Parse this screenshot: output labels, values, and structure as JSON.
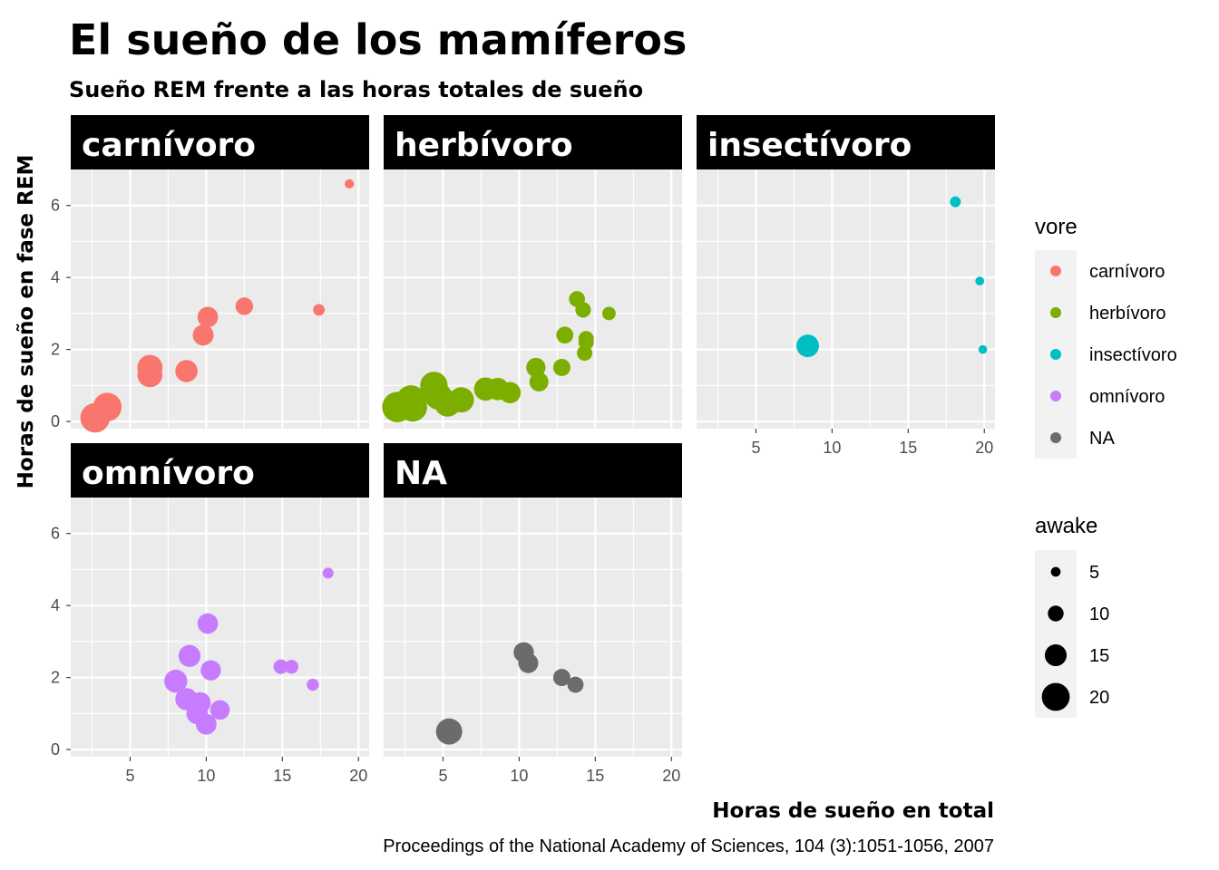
{
  "chart_data": {
    "type": "scatter",
    "title": "El sueño de los mamíferos",
    "subtitle": "Sueño REM frente a las horas totales de sueño",
    "xlabel": "Horas de sueño en total",
    "ylabel": "Horas de sueño en fase REM",
    "caption": "Proceedings of the National Academy of Sciences, 104 (3):1051-1056, 2007",
    "xlim": [
      1.1,
      20.7
    ],
    "ylim": [
      -0.2,
      7.0
    ],
    "x_ticks": [
      5,
      10,
      15,
      20
    ],
    "y_ticks": [
      0,
      2,
      4,
      6
    ],
    "facet_by": "vore",
    "size_by": "awake",
    "grid": true,
    "legend_position": "right",
    "panels": [
      {
        "name": "carnívoro",
        "color": "#F8766D",
        "points": [
          {
            "x": 19.4,
            "y": 6.6,
            "awake": 4.6
          },
          {
            "x": 17.4,
            "y": 3.1,
            "awake": 6.6
          },
          {
            "x": 12.5,
            "y": 3.2,
            "awake": 11.5
          },
          {
            "x": 10.1,
            "y": 2.9,
            "awake": 13.9
          },
          {
            "x": 9.8,
            "y": 2.4,
            "awake": 14.2
          },
          {
            "x": 8.7,
            "y": 1.4,
            "awake": 15.3
          },
          {
            "x": 6.3,
            "y": 1.5,
            "awake": 17.7
          },
          {
            "x": 6.3,
            "y": 1.3,
            "awake": 17.7
          },
          {
            "x": 3.5,
            "y": 0.4,
            "awake": 20.5
          },
          {
            "x": 2.7,
            "y": 0.1,
            "awake": 21.3
          }
        ]
      },
      {
        "name": "herbívoro",
        "color": "#7CAE00",
        "points": [
          {
            "x": 2.0,
            "y": 0.4,
            "awake": 22.0
          },
          {
            "x": 2.9,
            "y": 0.6,
            "awake": 21.1
          },
          {
            "x": 3.0,
            "y": 0.4,
            "awake": 21.0
          },
          {
            "x": 4.4,
            "y": 1.0,
            "awake": 19.6
          },
          {
            "x": 4.7,
            "y": 0.7,
            "awake": 19.3
          },
          {
            "x": 5.3,
            "y": 0.5,
            "awake": 18.7
          },
          {
            "x": 6.2,
            "y": 0.6,
            "awake": 17.8
          },
          {
            "x": 7.8,
            "y": 0.9,
            "awake": 16.2
          },
          {
            "x": 8.6,
            "y": 0.9,
            "awake": 15.4
          },
          {
            "x": 9.4,
            "y": 0.8,
            "awake": 14.6
          },
          {
            "x": 11.1,
            "y": 1.5,
            "awake": 12.9
          },
          {
            "x": 11.3,
            "y": 1.1,
            "awake": 12.7
          },
          {
            "x": 12.8,
            "y": 1.5,
            "awake": 11.2
          },
          {
            "x": 13.0,
            "y": 2.4,
            "awake": 11.0
          },
          {
            "x": 13.8,
            "y": 3.4,
            "awake": 10.2
          },
          {
            "x": 14.2,
            "y": 3.1,
            "awake": 9.8
          },
          {
            "x": 14.4,
            "y": 2.3,
            "awake": 9.6
          },
          {
            "x": 14.4,
            "y": 2.2,
            "awake": 9.6
          },
          {
            "x": 14.3,
            "y": 1.9,
            "awake": 9.7
          },
          {
            "x": 15.9,
            "y": 3.0,
            "awake": 8.1
          }
        ]
      },
      {
        "name": "insectívoro",
        "color": "#00BFC4",
        "points": [
          {
            "x": 8.4,
            "y": 2.1,
            "awake": 15.6
          },
          {
            "x": 18.1,
            "y": 6.1,
            "awake": 5.9
          },
          {
            "x": 19.7,
            "y": 3.9,
            "awake": 4.3
          },
          {
            "x": 19.9,
            "y": 2.0,
            "awake": 4.1
          }
        ]
      },
      {
        "name": "omnívoro",
        "color": "#C77CFF",
        "points": [
          {
            "x": 18.0,
            "y": 4.9,
            "awake": 6.0
          },
          {
            "x": 17.0,
            "y": 1.8,
            "awake": 7.0
          },
          {
            "x": 15.6,
            "y": 2.3,
            "awake": 8.4
          },
          {
            "x": 14.9,
            "y": 2.3,
            "awake": 9.1
          },
          {
            "x": 10.1,
            "y": 3.5,
            "awake": 13.9
          },
          {
            "x": 10.3,
            "y": 2.2,
            "awake": 13.7
          },
          {
            "x": 8.9,
            "y": 2.6,
            "awake": 15.1
          },
          {
            "x": 8.0,
            "y": 1.9,
            "awake": 16.0
          },
          {
            "x": 8.7,
            "y": 1.4,
            "awake": 15.3
          },
          {
            "x": 9.6,
            "y": 1.3,
            "awake": 14.4
          },
          {
            "x": 10.9,
            "y": 1.1,
            "awake": 13.1
          },
          {
            "x": 9.4,
            "y": 1.0,
            "awake": 14.6
          },
          {
            "x": 10.0,
            "y": 0.7,
            "awake": 14.0
          }
        ]
      },
      {
        "name": "NA",
        "color": "#6B6B6B",
        "points": [
          {
            "x": 5.4,
            "y": 0.5,
            "awake": 18.6
          },
          {
            "x": 10.3,
            "y": 2.7,
            "awake": 13.7
          },
          {
            "x": 10.6,
            "y": 2.4,
            "awake": 13.4
          },
          {
            "x": 12.8,
            "y": 2.0,
            "awake": 11.2
          },
          {
            "x": 13.7,
            "y": 1.8,
            "awake": 10.3
          }
        ]
      }
    ],
    "legend_color": {
      "title": "vore",
      "items": [
        {
          "label": "carnívoro",
          "color": "#F8766D"
        },
        {
          "label": "herbívoro",
          "color": "#7CAE00"
        },
        {
          "label": "insectívoro",
          "color": "#00BFC4"
        },
        {
          "label": "omnívoro",
          "color": "#C77CFF"
        },
        {
          "label": "NA",
          "color": "#6B6B6B"
        }
      ]
    },
    "legend_size": {
      "title": "awake",
      "values": [
        5,
        10,
        15,
        20
      ]
    }
  }
}
